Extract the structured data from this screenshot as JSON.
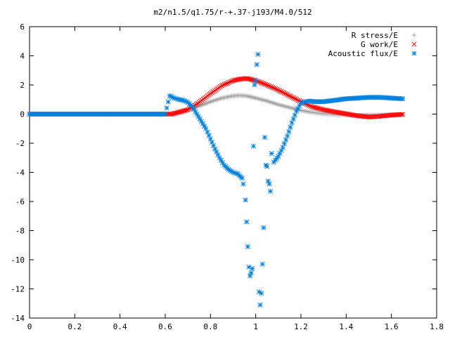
{
  "chart_data": {
    "type": "scatter",
    "title": "m2/n1.5/q1.75/r-+.37-j193/M4.0/512",
    "xlabel": "",
    "ylabel": "",
    "xlim": [
      0,
      1.8
    ],
    "ylim": [
      -14,
      6
    ],
    "x_ticks": [
      "0",
      "0.2",
      "0.4",
      "0.6",
      "0.8",
      "1",
      "1.2",
      "1.4",
      "1.6",
      "1.8"
    ],
    "y_ticks": [
      "6",
      "4",
      "2",
      "0",
      "-2",
      "-4",
      "-6",
      "-8",
      "-10",
      "-12",
      "-14"
    ],
    "legend_position": "top-right",
    "grid": false,
    "series": [
      {
        "name": "R stress/E",
        "marker": "plus",
        "color": "#a0a0a0",
        "x": [
          0,
          0.1,
          0.2,
          0.3,
          0.4,
          0.5,
          0.6,
          0.63,
          0.7,
          0.75,
          0.8,
          0.85,
          0.9,
          0.93,
          0.96,
          1.0,
          1.05,
          1.1,
          1.15,
          1.2,
          1.25,
          1.3,
          1.35,
          1.4,
          1.45,
          1.5,
          1.55,
          1.6,
          1.65
        ],
        "y": [
          0,
          0,
          0,
          0,
          0,
          0,
          0,
          0,
          0.3,
          0.55,
          0.85,
          1.1,
          1.25,
          1.28,
          1.25,
          1.1,
          0.9,
          0.65,
          0.45,
          0.25,
          0.12,
          0.03,
          -0.02,
          -0.05,
          -0.08,
          -0.08,
          -0.06,
          -0.04,
          -0.03
        ]
      },
      {
        "name": "G work/E",
        "marker": "cross",
        "color": "#ff0000",
        "x": [
          0,
          0.1,
          0.2,
          0.3,
          0.4,
          0.5,
          0.6,
          0.63,
          0.7,
          0.75,
          0.8,
          0.85,
          0.9,
          0.93,
          0.96,
          1.0,
          1.05,
          1.1,
          1.15,
          1.2,
          1.25,
          1.3,
          1.35,
          1.4,
          1.45,
          1.5,
          1.55,
          1.6,
          1.65
        ],
        "y": [
          0,
          0,
          0,
          0,
          0,
          0,
          0,
          0,
          0.3,
          0.8,
          1.4,
          1.95,
          2.3,
          2.4,
          2.45,
          2.3,
          2.0,
          1.65,
          1.25,
          0.85,
          0.5,
          0.3,
          0.15,
          0.02,
          -0.12,
          -0.2,
          -0.15,
          -0.07,
          -0.02
        ]
      },
      {
        "name": "Acoustic flux/E",
        "marker": "star",
        "color": "#0080e0",
        "x": [
          0,
          0.1,
          0.2,
          0.3,
          0.4,
          0.5,
          0.6,
          0.62,
          0.64,
          0.66,
          0.68,
          0.7,
          0.72,
          0.74,
          0.76,
          0.78,
          0.8,
          0.82,
          0.84,
          0.86,
          0.88,
          0.9,
          0.92,
          0.94,
          0.945,
          0.955,
          0.96,
          0.965,
          0.97,
          0.975,
          0.98,
          0.985,
          0.99,
          0.995,
          1.0,
          1.005,
          1.01,
          1.015,
          1.02,
          1.025,
          1.03,
          1.035,
          1.04,
          1.045,
          1.05,
          1.055,
          1.06,
          1.065,
          1.07,
          1.08,
          1.1,
          1.12,
          1.14,
          1.16,
          1.18,
          1.2,
          1.22,
          1.24,
          1.26,
          1.3,
          1.35,
          1.4,
          1.45,
          1.5,
          1.55,
          1.6,
          1.65
        ],
        "y": [
          0,
          0,
          0,
          0,
          0,
          0,
          0,
          1.25,
          1.1,
          1.0,
          0.95,
          0.8,
          0.5,
          0.0,
          -0.5,
          -1.0,
          -1.7,
          -2.4,
          -3.0,
          -3.5,
          -3.8,
          -4.0,
          -4.1,
          -4.4,
          -4.8,
          -5.9,
          -7.4,
          -9.1,
          -10.5,
          -11.1,
          -10.9,
          -10.6,
          -2.2,
          2.0,
          2.3,
          3.4,
          4.1,
          -12.2,
          -13.1,
          -12.3,
          -10.3,
          -7.8,
          -1.6,
          -3.5,
          -3.6,
          -4.6,
          -4.8,
          -5.3,
          -2.7,
          -3.3,
          -2.9,
          -2.3,
          -1.5,
          -0.6,
          0.2,
          0.75,
          0.85,
          0.9,
          0.85,
          0.85,
          0.95,
          1.05,
          1.1,
          1.15,
          1.15,
          1.1,
          1.05
        ]
      }
    ]
  }
}
